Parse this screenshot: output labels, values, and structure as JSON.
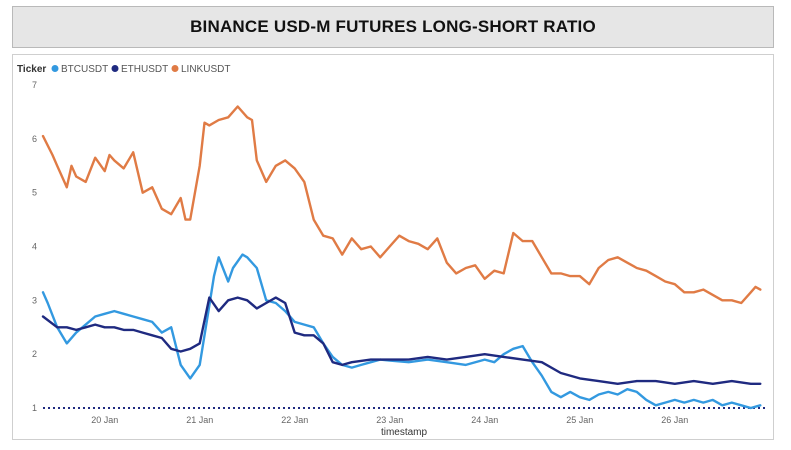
{
  "header": {
    "title": "BINANCE USD-M FUTURES LONG-SHORT RATIO"
  },
  "legend": {
    "title": "Ticker"
  },
  "colors": {
    "BTCUSDT": "#3399e0",
    "ETHUSDT": "#1f2a80",
    "LINKUSDT": "#e07b45",
    "baseline": "#1f2a80"
  },
  "chart_data": {
    "type": "line",
    "title": "BINANCE USD-M FUTURES LONG-SHORT RATIO",
    "xlabel": "timestamp",
    "ylabel": "",
    "xlim": [
      19.35,
      26.95
    ],
    "ylim": [
      1,
      7
    ],
    "x_ticks": [
      20,
      21,
      22,
      23,
      24,
      25,
      26
    ],
    "x_tick_labels": [
      "20 Jan",
      "21 Jan",
      "22 Jan",
      "23 Jan",
      "24 Jan",
      "25 Jan",
      "26 Jan"
    ],
    "y_ticks": [
      1,
      2,
      3,
      4,
      5,
      6,
      7
    ],
    "y_tick_labels": [
      "1",
      "2",
      "3",
      "4",
      "5",
      "6",
      "7"
    ],
    "legend_position": "top-left",
    "baseline": {
      "y": 1,
      "style": "dotted"
    },
    "series": [
      {
        "name": "BTCUSDT",
        "x": [
          19.35,
          19.4,
          19.5,
          19.6,
          19.7,
          19.8,
          19.9,
          20.0,
          20.1,
          20.2,
          20.3,
          20.4,
          20.5,
          20.6,
          20.7,
          20.8,
          20.9,
          21.0,
          21.1,
          21.15,
          21.2,
          21.3,
          21.35,
          21.45,
          21.5,
          21.6,
          21.7,
          21.8,
          21.9,
          22.0,
          22.1,
          22.2,
          22.3,
          22.4,
          22.5,
          22.6,
          22.7,
          22.8,
          22.9,
          23.0,
          23.2,
          23.4,
          23.6,
          23.8,
          24.0,
          24.1,
          24.2,
          24.3,
          24.4,
          24.5,
          24.6,
          24.7,
          24.8,
          24.9,
          25.0,
          25.1,
          25.2,
          25.3,
          25.4,
          25.5,
          25.6,
          25.7,
          25.8,
          25.9,
          26.0,
          26.1,
          26.2,
          26.3,
          26.4,
          26.5,
          26.6,
          26.7,
          26.8,
          26.9
        ],
        "values": [
          3.15,
          2.95,
          2.5,
          2.2,
          2.4,
          2.55,
          2.7,
          2.75,
          2.8,
          2.75,
          2.7,
          2.65,
          2.6,
          2.4,
          2.5,
          1.8,
          1.55,
          1.8,
          2.9,
          3.45,
          3.8,
          3.35,
          3.6,
          3.85,
          3.8,
          3.6,
          3.0,
          2.95,
          2.8,
          2.6,
          2.55,
          2.5,
          2.2,
          1.95,
          1.8,
          1.75,
          1.8,
          1.85,
          1.9,
          1.88,
          1.85,
          1.9,
          1.85,
          1.8,
          1.9,
          1.85,
          2.0,
          2.1,
          2.15,
          1.85,
          1.6,
          1.3,
          1.2,
          1.3,
          1.2,
          1.15,
          1.25,
          1.3,
          1.25,
          1.35,
          1.3,
          1.15,
          1.05,
          1.1,
          1.15,
          1.1,
          1.15,
          1.1,
          1.15,
          1.05,
          1.1,
          1.05,
          1.0,
          1.05
        ]
      },
      {
        "name": "ETHUSDT",
        "x": [
          19.35,
          19.5,
          19.6,
          19.7,
          19.8,
          19.9,
          20.0,
          20.1,
          20.2,
          20.3,
          20.4,
          20.5,
          20.6,
          20.7,
          20.8,
          20.9,
          21.0,
          21.1,
          21.2,
          21.3,
          21.4,
          21.5,
          21.6,
          21.7,
          21.8,
          21.9,
          22.0,
          22.1,
          22.2,
          22.3,
          22.4,
          22.5,
          22.6,
          22.8,
          23.0,
          23.2,
          23.4,
          23.6,
          23.8,
          24.0,
          24.2,
          24.4,
          24.6,
          24.8,
          25.0,
          25.2,
          25.4,
          25.6,
          25.8,
          26.0,
          26.2,
          26.4,
          26.6,
          26.8,
          26.9
        ],
        "values": [
          2.7,
          2.5,
          2.5,
          2.45,
          2.5,
          2.55,
          2.5,
          2.5,
          2.45,
          2.45,
          2.4,
          2.35,
          2.3,
          2.1,
          2.05,
          2.1,
          2.2,
          3.05,
          2.8,
          3.0,
          3.05,
          3.0,
          2.85,
          2.95,
          3.05,
          2.95,
          2.4,
          2.35,
          2.35,
          2.2,
          1.85,
          1.8,
          1.85,
          1.9,
          1.9,
          1.9,
          1.95,
          1.9,
          1.95,
          2.0,
          1.95,
          1.9,
          1.85,
          1.65,
          1.55,
          1.5,
          1.45,
          1.5,
          1.5,
          1.45,
          1.5,
          1.45,
          1.5,
          1.45,
          1.45
        ]
      },
      {
        "name": "LINKUSDT",
        "x": [
          19.35,
          19.45,
          19.5,
          19.6,
          19.65,
          19.7,
          19.8,
          19.9,
          20.0,
          20.05,
          20.1,
          20.2,
          20.3,
          20.4,
          20.5,
          20.55,
          20.6,
          20.7,
          20.8,
          20.85,
          20.9,
          21.0,
          21.05,
          21.1,
          21.2,
          21.3,
          21.4,
          21.5,
          21.55,
          21.6,
          21.7,
          21.8,
          21.9,
          22.0,
          22.1,
          22.2,
          22.3,
          22.4,
          22.5,
          22.6,
          22.7,
          22.8,
          22.9,
          23.0,
          23.1,
          23.2,
          23.3,
          23.4,
          23.5,
          23.6,
          23.7,
          23.8,
          23.9,
          24.0,
          24.1,
          24.2,
          24.3,
          24.4,
          24.5,
          24.6,
          24.7,
          24.8,
          24.9,
          25.0,
          25.1,
          25.2,
          25.3,
          25.4,
          25.5,
          25.6,
          25.7,
          25.8,
          25.9,
          26.0,
          26.1,
          26.2,
          26.3,
          26.4,
          26.5,
          26.6,
          26.7,
          26.8,
          26.85,
          26.9
        ],
        "values": [
          6.05,
          5.7,
          5.5,
          5.1,
          5.5,
          5.3,
          5.2,
          5.65,
          5.4,
          5.7,
          5.6,
          5.45,
          5.75,
          5.0,
          5.1,
          4.9,
          4.7,
          4.6,
          4.9,
          4.5,
          4.5,
          5.5,
          6.3,
          6.25,
          6.35,
          6.4,
          6.6,
          6.4,
          6.35,
          5.6,
          5.2,
          5.5,
          5.6,
          5.45,
          5.2,
          4.5,
          4.2,
          4.15,
          3.85,
          4.15,
          3.95,
          4.0,
          3.8,
          4.0,
          4.2,
          4.1,
          4.05,
          3.95,
          4.15,
          3.7,
          3.5,
          3.6,
          3.65,
          3.4,
          3.55,
          3.5,
          4.25,
          4.1,
          4.1,
          3.8,
          3.5,
          3.5,
          3.45,
          3.45,
          3.3,
          3.6,
          3.75,
          3.8,
          3.7,
          3.6,
          3.55,
          3.45,
          3.35,
          3.3,
          3.15,
          3.15,
          3.2,
          3.1,
          3.0,
          3.0,
          2.95,
          3.15,
          3.25,
          3.2
        ]
      }
    ]
  }
}
